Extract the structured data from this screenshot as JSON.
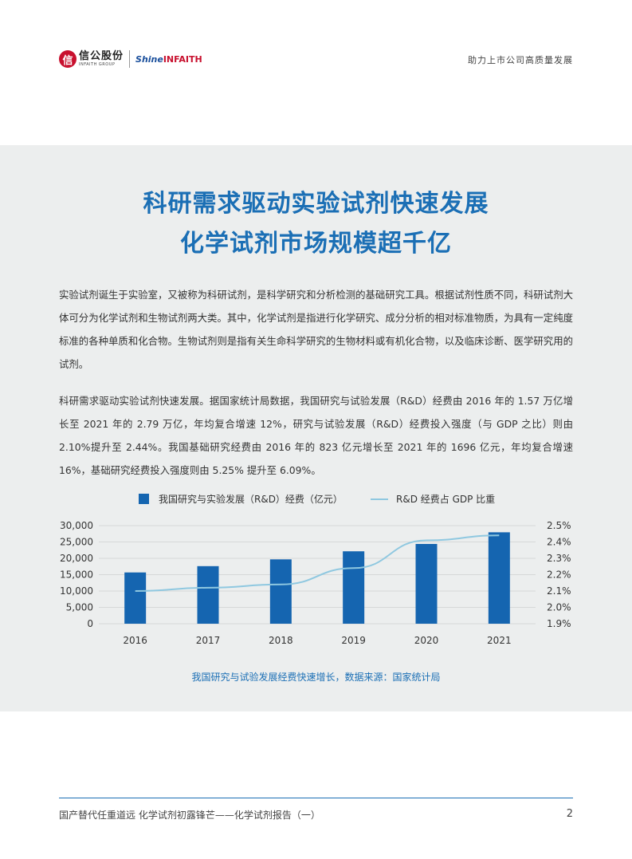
{
  "header": {
    "logo_cn": "信公股份",
    "logo_en": "INFAITH GROUP",
    "logo_shine": "Shine",
    "logo_infaith": "INFAITH",
    "tagline": "助力上市公司高质量发展"
  },
  "title_line1": "科研需求驱动实验试剂快速发展",
  "title_line2": "化学试剂市场规模超千亿",
  "paragraph1": "实验试剂诞生于实验室，又被称为科研试剂，是科学研究和分析检测的基础研究工具。根据试剂性质不同，科研试剂大体可分为化学试剂和生物试剂两大类。其中，化学试剂是指进行化学研究、成分分析的相对标准物质，为具有一定纯度标准的各种单质和化合物。生物试剂则是指有关生命科学研究的生物材料或有机化合物，以及临床诊断、医学研究用的试剂。",
  "paragraph2": "科研需求驱动实验试剂快速发展。据国家统计局数据，我国研究与试验发展（R&D）经费由 2016 年的 1.57 万亿增长至 2021 年的 2.79 万亿，年均复合增速 12%，研究与试验发展（R&D）经费投入强度（与 GDP 之比）则由 2.10%提升至 2.44%。我国基础研究经费由 2016 年的 823 亿元增长至 2021 年的 1696 亿元，年均复合增速 16%，基础研究经费投入强度则由 5.25% 提升至 6.09%。",
  "chart_data": {
    "type": "bar",
    "categories": [
      "2016",
      "2017",
      "2018",
      "2019",
      "2020",
      "2021"
    ],
    "series": [
      {
        "name": "我国研究与实验发展（R&D）经费（亿元）",
        "type": "bar",
        "axis": "left",
        "values": [
          15677,
          17606,
          19678,
          22144,
          24393,
          27956
        ]
      },
      {
        "name": "R&D 经费占 GDP 比重",
        "type": "line",
        "axis": "right",
        "values": [
          2.1,
          2.12,
          2.14,
          2.24,
          2.41,
          2.44
        ]
      }
    ],
    "ylim_left": [
      0,
      30000
    ],
    "yticks_left": [
      "30,000",
      "25,000",
      "20,000",
      "15,000",
      "10,000",
      "5,000",
      "0"
    ],
    "ylim_right": [
      1.9,
      2.5
    ],
    "yticks_right": [
      "2.5%",
      "2.4%",
      "2.3%",
      "2.2%",
      "2.1%",
      "2.0%",
      "1.9%"
    ],
    "grid": true,
    "legend": "top",
    "colors": {
      "bar": "#1565b0",
      "line": "#8fc8e0"
    }
  },
  "caption": "我国研究与试验发展经费快速增长，数据来源：国家统计局",
  "footer": {
    "text": "国产替代任重道远 化学试剂初露锋芒——化学试剂报告（一）",
    "page": "2"
  }
}
